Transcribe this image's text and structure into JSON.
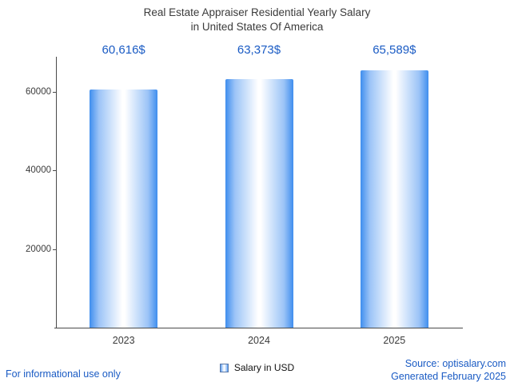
{
  "title": {
    "line1": "Real Estate Appraiser Residential Yearly Salary",
    "line2": "in United States Of America"
  },
  "chart_data": {
    "type": "bar",
    "title": "Real Estate Appraiser Residential Yearly Salary in United States Of America",
    "categories": [
      "2023",
      "2024",
      "2025"
    ],
    "values": [
      60616,
      63373,
      65589
    ],
    "value_labels": [
      "60,616$",
      "63,373$",
      "65,589$"
    ],
    "xlabel": "",
    "ylabel": "",
    "ylim": [
      0,
      69000
    ],
    "yticks": [
      20000,
      40000,
      60000
    ],
    "grid": false,
    "legend_position": "bottom",
    "series_name": "Salary in USD",
    "bar_colors": [
      "#3f8eee",
      "#9cc4f7",
      "#ffffff"
    ],
    "value_label_color": "#1a5bc4"
  },
  "legend": {
    "label": "Salary in USD"
  },
  "footer": {
    "disclaimer": "For informational use only",
    "source": "Source: optisalary.com",
    "generated": "Generated February 2025"
  },
  "colors": {
    "accent_blue": "#1a5bc4",
    "axis": "#4a4a4a",
    "text": "#3b3b3b"
  }
}
